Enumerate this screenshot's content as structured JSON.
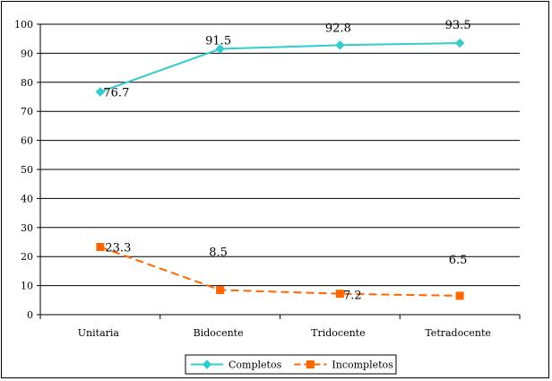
{
  "chart_data": {
    "type": "line",
    "title": "",
    "xlabel": "",
    "ylabel": "",
    "categories": [
      "Unitaria",
      "Bidocente",
      "Tridocente",
      "Tetradocente"
    ],
    "ylim": [
      0,
      100
    ],
    "yticks": [
      0,
      10,
      20,
      30,
      40,
      50,
      60,
      70,
      80,
      90,
      100
    ],
    "grid": true,
    "legend_position": "bottom",
    "series": [
      {
        "name": "Completos",
        "values": [
          76.7,
          91.5,
          92.8,
          93.5
        ],
        "labels": [
          "76.7",
          "91.5",
          "92.8",
          "93.5"
        ],
        "color": "#33cccc",
        "marker": "diamond",
        "dashed": false
      },
      {
        "name": "Incompletos",
        "values": [
          23.3,
          8.5,
          7.2,
          6.5
        ],
        "labels": [
          "23.3",
          "8.5",
          "7.2",
          "6.5"
        ],
        "color": "#ff6600",
        "marker": "square",
        "dashed": true
      }
    ]
  }
}
